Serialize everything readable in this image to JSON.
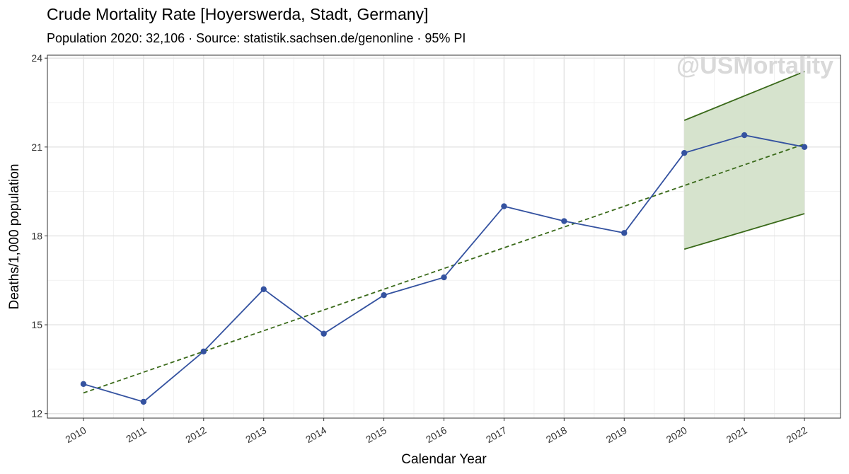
{
  "title": "Crude Mortality Rate [Hoyerswerda, Stadt, Germany]",
  "subtitle": "Population 2020: 32,106 · Source: statistik.sachsen.de/genonline · 95% PI",
  "watermark": "@USMortality",
  "colors": {
    "series": "#3452a0",
    "trend": "#3a6a1a",
    "band_fill": "#d4e2ca",
    "grid_major": "#e3e3e3",
    "grid_minor": "#f1f1f1"
  },
  "chart_data": {
    "type": "line",
    "xlabel": "Calendar Year",
    "ylabel": "Deaths/1,000 population",
    "xlim": [
      2009.4,
      2022.6
    ],
    "ylim": [
      11.85,
      24.1
    ],
    "yticks": [
      12,
      15,
      18,
      21,
      24
    ],
    "xticks": [
      2010,
      2011,
      2012,
      2013,
      2014,
      2015,
      2016,
      2017,
      2018,
      2019,
      2020,
      2021,
      2022
    ],
    "grid": true,
    "series": [
      {
        "x": [
          2010,
          2011,
          2012,
          2013,
          2014,
          2015,
          2016,
          2017,
          2018,
          2019,
          2020,
          2021,
          2022
        ],
        "values": [
          13.0,
          12.4,
          14.1,
          16.2,
          14.7,
          16.0,
          16.6,
          19.0,
          18.5,
          18.1,
          20.8,
          21.4,
          21.0
        ]
      }
    ],
    "trend": {
      "x": [
        2010,
        2022
      ],
      "values": [
        12.7,
        21.1
      ],
      "style": "dashed"
    },
    "prediction_interval": {
      "x": [
        2020,
        2022
      ],
      "upper": [
        21.9,
        23.55
      ],
      "lower": [
        17.55,
        18.75
      ]
    }
  }
}
